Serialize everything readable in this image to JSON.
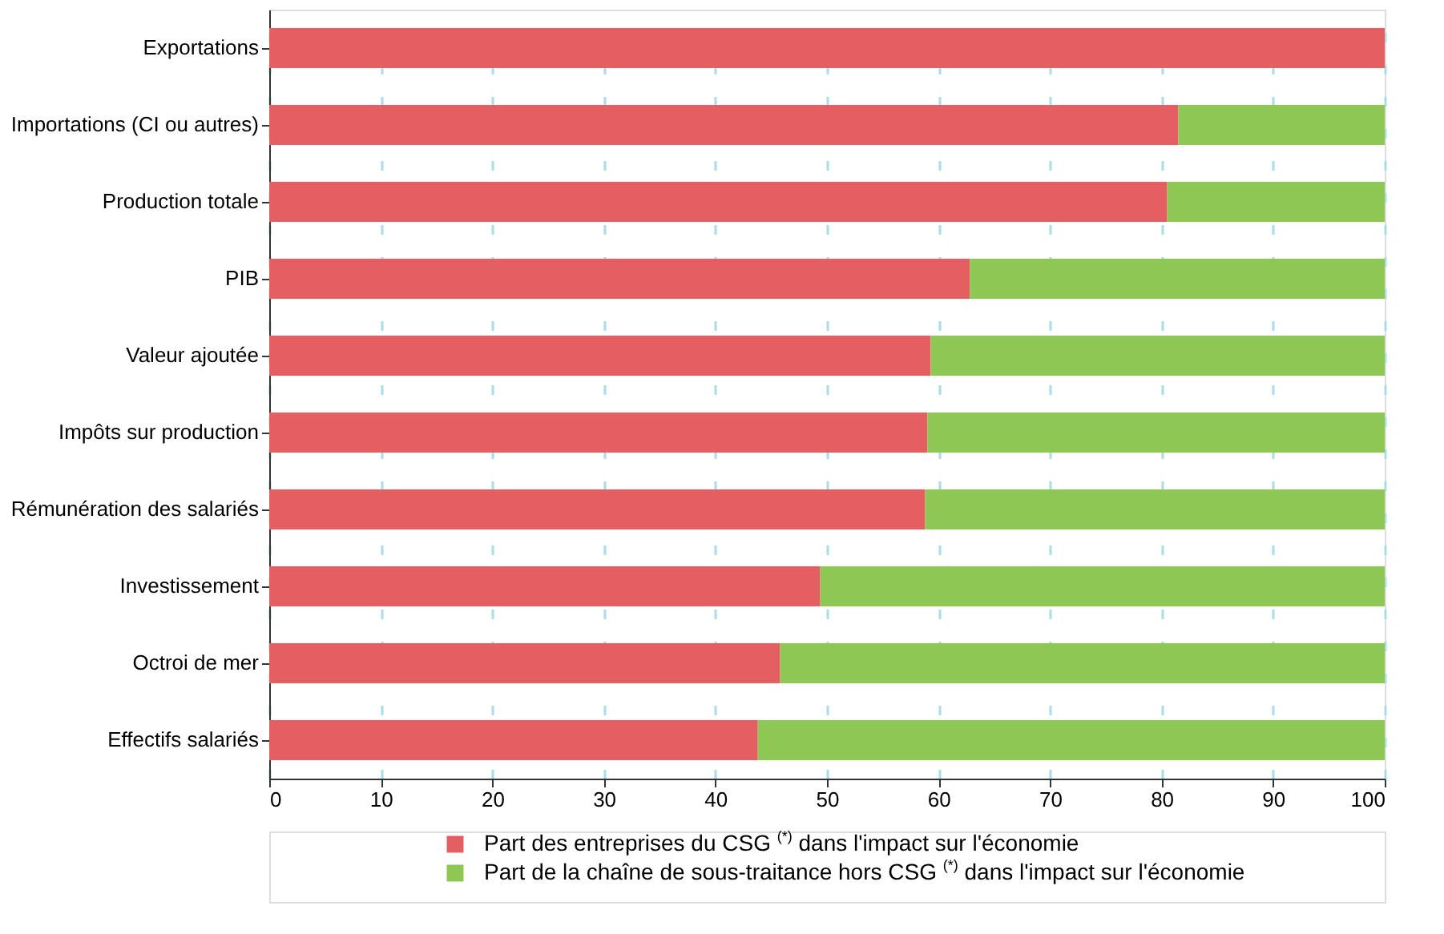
{
  "chart_data": {
    "type": "bar",
    "orientation": "horizontal",
    "stacked": true,
    "categories": [
      "Exportations",
      "Importations (CI ou autres)",
      "Production totale",
      "PIB",
      "Valeur ajoutée",
      "Impôts sur production",
      "Rémunération des salariés",
      "Investissement",
      "Octroi de mer",
      "Effectifs salariés"
    ],
    "series": [
      {
        "name": "Part des entreprises du CSG $^{(*)}$ dans l'impact sur l'économie",
        "color": "#e55e62",
        "values": [
          100,
          81.5,
          80.5,
          62.8,
          59.3,
          59.0,
          58.8,
          49.4,
          45.8,
          43.8
        ]
      },
      {
        "name": "Part de la chaîne de sous-traitance hors CSG $^{(*)}$ dans l'impact sur l'économie",
        "color": "#8fc754",
        "values": [
          0,
          18.5,
          19.5,
          37.2,
          40.7,
          41.0,
          41.2,
          50.6,
          54.2,
          56.2
        ]
      }
    ],
    "xlim": [
      0,
      100
    ],
    "xticks": [
      0,
      10,
      20,
      30,
      40,
      50,
      60,
      70,
      80,
      90,
      100
    ],
    "grid": "x",
    "legend": "bottom"
  }
}
